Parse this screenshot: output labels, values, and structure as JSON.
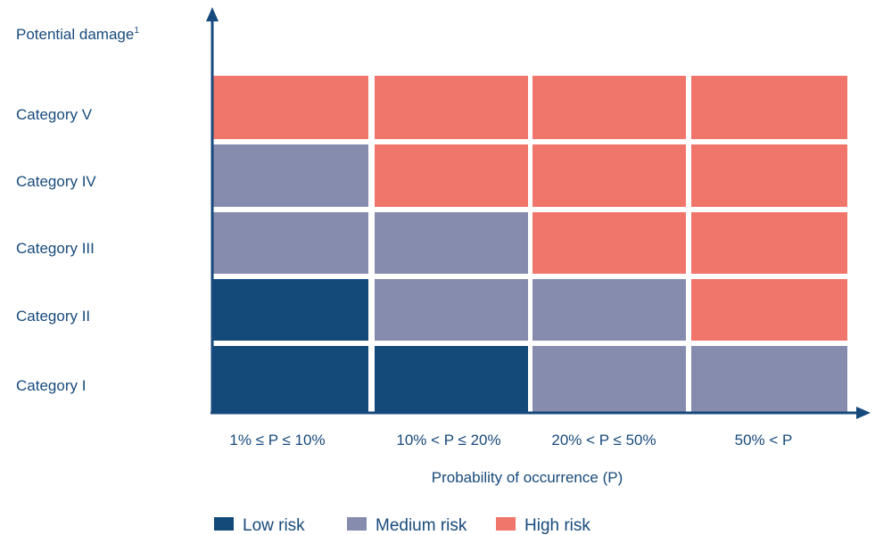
{
  "chart_data": {
    "type": "heatmap",
    "ylabel": "Potential damage",
    "ylabel_superscript": "1",
    "xlabel": "Probability of occurrence (P)",
    "x_categories": [
      "1% ≤ P ≤ 10%",
      "10% < P ≤ 20%",
      "20% < P ≤ 50%",
      "50% < P"
    ],
    "y_categories": [
      "Category I",
      "Category II",
      "Category III",
      "Category IV",
      "Category V"
    ],
    "legend": [
      {
        "key": "low",
        "label": "Low risk",
        "color": "#134a79"
      },
      {
        "key": "medium",
        "label": "Medium risk",
        "color": "#868cad"
      },
      {
        "key": "high",
        "label": "High risk",
        "color": "#f0756b"
      }
    ],
    "legend_position": "bottom",
    "cells": [
      [
        "low",
        "low",
        "medium",
        "medium"
      ],
      [
        "low",
        "medium",
        "medium",
        "high"
      ],
      [
        "medium",
        "medium",
        "high",
        "high"
      ],
      [
        "medium",
        "high",
        "high",
        "high"
      ],
      [
        "high",
        "high",
        "high",
        "high"
      ]
    ],
    "axis_color": "#174a7c"
  }
}
